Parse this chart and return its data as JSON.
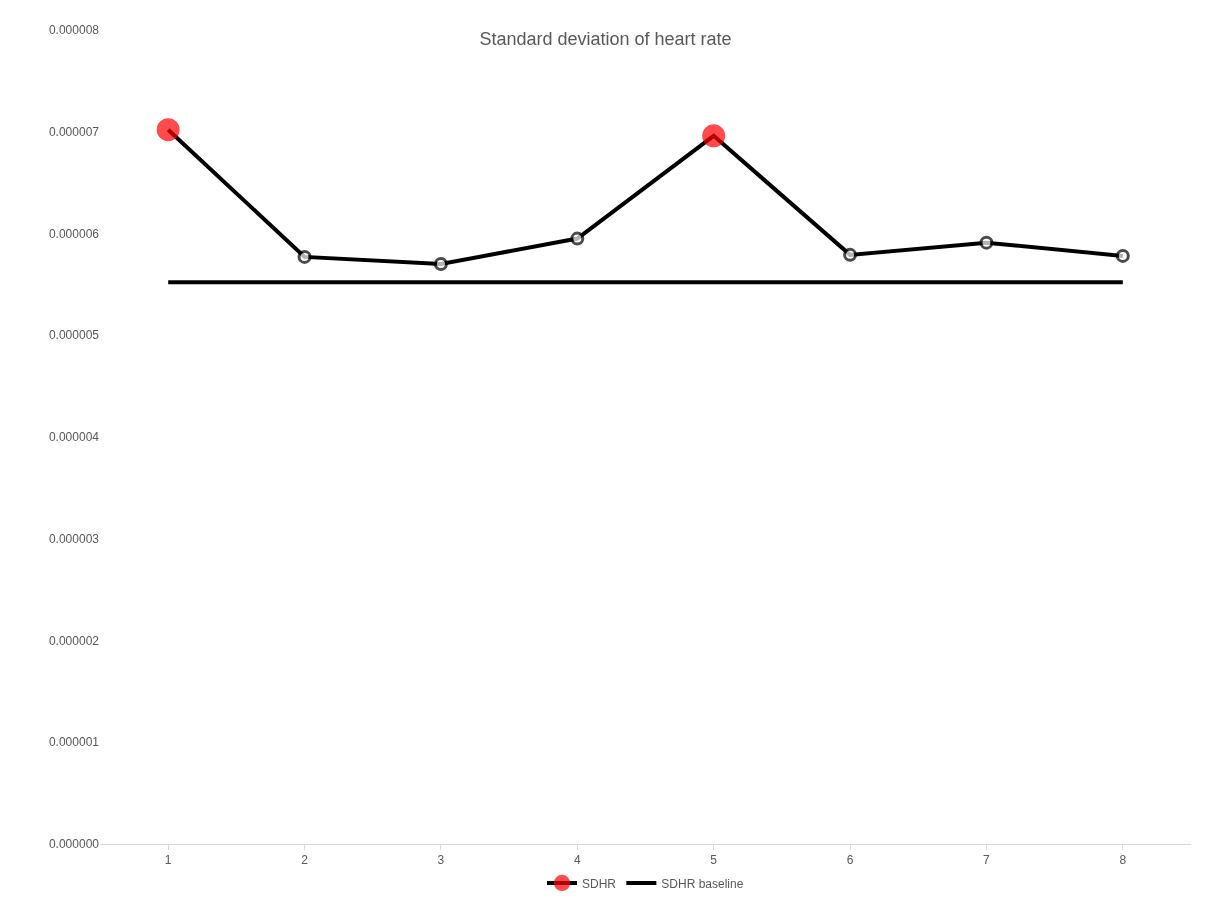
{
  "chart_data": {
    "type": "line",
    "title": "Standard deviation of heart rate",
    "categories": [
      "1",
      "2",
      "3",
      "4",
      "5",
      "6",
      "7",
      "8"
    ],
    "series": [
      {
        "name": "SDHR",
        "color": "#000000",
        "colors": [
          "#ff0000",
          "#000000",
          "#000000",
          "#000000",
          "#ff0000",
          "#000000",
          "#000000",
          "#000000"
        ],
        "marker": "circle",
        "values": [
          7.02e-06,
          5.77e-06,
          5.7e-06,
          5.95e-06,
          6.96e-06,
          5.79e-06,
          5.91e-06,
          5.78e-06
        ]
      },
      {
        "name": "SDHR baseline",
        "color": "#000000",
        "marker": "none",
        "values": [
          5.52e-06,
          5.52e-06,
          5.52e-06,
          5.52e-06,
          5.52e-06,
          5.52e-06,
          5.52e-06,
          5.52e-06
        ]
      }
    ],
    "ylim": [
      0,
      8e-06
    ],
    "yticks": [
      {
        "value": 0,
        "label": "0.000000"
      },
      {
        "value": 1e-06,
        "label": "0.000001"
      },
      {
        "value": 2e-06,
        "label": "0.000002"
      },
      {
        "value": 3e-06,
        "label": "0.000003"
      },
      {
        "value": 4e-06,
        "label": "0.000004"
      },
      {
        "value": 5e-06,
        "label": "0.000005"
      },
      {
        "value": 6e-06,
        "label": "0.000006"
      },
      {
        "value": 7e-06,
        "label": "0.000007"
      },
      {
        "value": 8e-06,
        "label": "0.000008"
      }
    ],
    "grid": false,
    "legend": "bottom"
  }
}
